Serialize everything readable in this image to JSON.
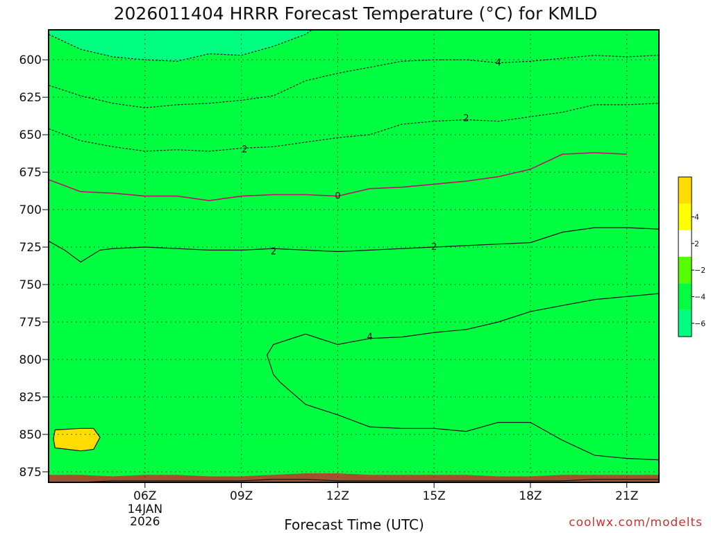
{
  "chart_data": {
    "type": "heatmap",
    "title": "2026011404 HRRR Forecast Temperature (°C) for KMLD",
    "xlabel": "Forecast Time (UTC)",
    "credit": "coolwx.com/modelts",
    "x_range": [
      3,
      22
    ],
    "y_range": [
      580,
      882
    ],
    "y_ticks": [
      {
        "value": 600,
        "label": "600"
      },
      {
        "value": 625,
        "label": "625"
      },
      {
        "value": 650,
        "label": "650"
      },
      {
        "value": 675,
        "label": "675"
      },
      {
        "value": 700,
        "label": "700"
      },
      {
        "value": 725,
        "label": "725"
      },
      {
        "value": 750,
        "label": "750"
      },
      {
        "value": 775,
        "label": "775"
      },
      {
        "value": 800,
        "label": "800"
      },
      {
        "value": 825,
        "label": "825"
      },
      {
        "value": 850,
        "label": "850"
      },
      {
        "value": 875,
        "label": "875"
      }
    ],
    "x_ticks": [
      {
        "value": 6,
        "label": "06Z",
        "sub": [
          "14JAN",
          "2026"
        ]
      },
      {
        "value": 9,
        "label": "09Z",
        "sub": []
      },
      {
        "value": 12,
        "label": "12Z",
        "sub": []
      },
      {
        "value": 15,
        "label": "15Z",
        "sub": []
      },
      {
        "value": 18,
        "label": "18Z",
        "sub": []
      },
      {
        "value": 21,
        "label": "21Z",
        "sub": []
      }
    ],
    "colorbar": [
      {
        "color": "#00ff80",
        "label": "−6"
      },
      {
        "color": "#00ff40",
        "label": "−4"
      },
      {
        "color": "#55ff00",
        "label": "−2"
      },
      {
        "color": "#ffffff",
        "label": "2"
      },
      {
        "color": "#ffff00",
        "label": "4"
      },
      {
        "color": "#ffdd00",
        "label": ""
      }
    ],
    "fills": [
      {
        "name": "above-4",
        "color": "#ffdd00",
        "base": "bottom",
        "edge": "c4"
      },
      {
        "name": "2-to-4",
        "color": "#ffff00",
        "base": "bottom",
        "edge": "c2"
      },
      {
        "name": "minus2-to-2",
        "color": "#ffffff",
        "base": "bottom",
        "edge": "cm2"
      },
      {
        "name": "minus4-to-minus2",
        "color": "#55ff00",
        "base": "bottom",
        "edge": "cm4"
      },
      {
        "name": "minus6-to-minus4",
        "color": "#00ff40",
        "base": "bottom",
        "edge": "cm6"
      },
      {
        "name": "below-minus6",
        "color": "#00ff80",
        "base": "top",
        "edge": "cm6"
      }
    ],
    "contours": {
      "cm6": {
        "style": "dashed",
        "color": "#222222",
        "label": "",
        "points": [
          [
            3,
            583
          ],
          [
            4,
            593
          ],
          [
            5,
            598
          ],
          [
            6,
            600
          ],
          [
            7,
            601
          ],
          [
            8,
            596
          ],
          [
            9,
            597
          ],
          [
            10,
            591
          ],
          [
            11,
            583
          ],
          [
            11.2,
            580
          ]
        ]
      },
      "cm4": {
        "style": "dashed",
        "color": "#222222",
        "label": "4",
        "points": [
          [
            3,
            617
          ],
          [
            4,
            624
          ],
          [
            5,
            629
          ],
          [
            6,
            632
          ],
          [
            7,
            630
          ],
          [
            8,
            629
          ],
          [
            9,
            627
          ],
          [
            10,
            624
          ],
          [
            11,
            614
          ],
          [
            12,
            609
          ],
          [
            13,
            605
          ],
          [
            14,
            601
          ],
          [
            15,
            600
          ],
          [
            16,
            600
          ],
          [
            17,
            602
          ],
          [
            18,
            601
          ],
          [
            19,
            599
          ],
          [
            20,
            597
          ],
          [
            21,
            598
          ],
          [
            22,
            597
          ]
        ]
      },
      "cm2": {
        "style": "dashed",
        "color": "#222222",
        "label": "2",
        "points": [
          [
            3,
            646
          ],
          [
            4,
            654
          ],
          [
            5,
            658
          ],
          [
            6,
            661
          ],
          [
            7,
            660
          ],
          [
            8,
            661
          ],
          [
            9,
            659
          ],
          [
            10,
            658
          ],
          [
            11,
            655
          ],
          [
            12,
            652
          ],
          [
            13,
            650
          ],
          [
            14,
            643
          ],
          [
            15,
            641
          ],
          [
            16,
            640
          ],
          [
            17,
            641
          ],
          [
            18,
            638
          ],
          [
            19,
            635
          ],
          [
            20,
            630
          ],
          [
            21,
            630
          ],
          [
            22,
            629
          ]
        ]
      },
      "c0": {
        "style": "solid",
        "color": "#c0106a",
        "label": "0",
        "points": [
          [
            3,
            680
          ],
          [
            4,
            688
          ],
          [
            5,
            689
          ],
          [
            6,
            691
          ],
          [
            7,
            691
          ],
          [
            8,
            694
          ],
          [
            9,
            691
          ],
          [
            10,
            690
          ],
          [
            11,
            690
          ],
          [
            12,
            691
          ],
          [
            13,
            686
          ],
          [
            14,
            685
          ],
          [
            15,
            683
          ],
          [
            16,
            681
          ],
          [
            17,
            678
          ],
          [
            18,
            673
          ],
          [
            19,
            663
          ],
          [
            20,
            662
          ],
          [
            21,
            663
          ]
        ]
      },
      "c2": {
        "style": "solid",
        "color": "#111111",
        "label": "2",
        "points": [
          [
            3,
            721
          ],
          [
            3.5,
            727
          ],
          [
            4,
            735
          ],
          [
            4.6,
            727
          ],
          [
            5,
            726
          ],
          [
            6,
            725
          ],
          [
            7,
            726
          ],
          [
            8,
            727
          ],
          [
            9,
            727
          ],
          [
            10,
            726
          ],
          [
            11,
            727
          ],
          [
            12,
            728
          ],
          [
            13,
            727
          ],
          [
            14,
            726
          ],
          [
            15,
            725
          ],
          [
            16,
            724
          ],
          [
            17,
            723
          ],
          [
            18,
            722
          ],
          [
            19,
            715
          ],
          [
            20,
            712
          ],
          [
            21,
            712
          ],
          [
            22,
            713
          ]
        ]
      },
      "c4": {
        "style": "solid",
        "color": "#111111",
        "label": "4",
        "points": [
          [
            3,
            882
          ],
          [
            4,
            882
          ],
          [
            5,
            881
          ],
          [
            6,
            881
          ],
          [
            7,
            881
          ],
          [
            8,
            881
          ],
          [
            9,
            881
          ],
          [
            10,
            880
          ],
          [
            11,
            880
          ],
          [
            12,
            881
          ],
          [
            13,
            881
          ],
          [
            14,
            881
          ],
          [
            15,
            881
          ],
          [
            16,
            881
          ],
          [
            17,
            881
          ],
          [
            18,
            881
          ],
          [
            19,
            881
          ],
          [
            20,
            880
          ],
          [
            21,
            880
          ],
          [
            22,
            880
          ],
          [
            22,
            756
          ],
          [
            21,
            758
          ],
          [
            20,
            760
          ],
          [
            19,
            764
          ],
          [
            18,
            768
          ],
          [
            17,
            775
          ],
          [
            16,
            780
          ],
          [
            15,
            782
          ],
          [
            14,
            785
          ],
          [
            13,
            786
          ],
          [
            12,
            790
          ],
          [
            11,
            783
          ],
          [
            10,
            790
          ],
          [
            9.8,
            797
          ],
          [
            10,
            810
          ],
          [
            10.2,
            815
          ],
          [
            11,
            830
          ],
          [
            12,
            837
          ],
          [
            13,
            845
          ],
          [
            14,
            846
          ],
          [
            15,
            846
          ],
          [
            16,
            848
          ],
          [
            17,
            842
          ],
          [
            18,
            842
          ],
          [
            19,
            854
          ],
          [
            20,
            864
          ],
          [
            21,
            866
          ],
          [
            22,
            867
          ]
        ]
      },
      "c4b": {
        "style": "solid",
        "color": "#111111",
        "label": "",
        "points": [
          [
            3.2,
            847
          ],
          [
            4,
            846
          ],
          [
            4.4,
            846
          ],
          [
            4.6,
            852
          ],
          [
            4.4,
            860
          ],
          [
            4,
            861
          ],
          [
            3.6,
            860
          ],
          [
            3.2,
            859
          ],
          [
            3.15,
            853
          ],
          [
            3.2,
            847
          ]
        ]
      }
    },
    "contour_labels": [
      {
        "text": "4",
        "x": 17,
        "y": 602
      },
      {
        "text": "2",
        "x": 16,
        "y": 639
      },
      {
        "text": "2",
        "x": 9.1,
        "y": 660
      },
      {
        "text": "0",
        "x": 12,
        "y": 691
      },
      {
        "text": "2",
        "x": 10,
        "y": 728
      },
      {
        "text": "2",
        "x": 15,
        "y": 725
      },
      {
        "text": "4",
        "x": 13,
        "y": 785
      }
    ],
    "ground": {
      "color": "#a0522d",
      "top_points": [
        [
          3,
          877
        ],
        [
          4,
          877
        ],
        [
          5,
          878
        ],
        [
          6,
          877
        ],
        [
          7,
          877
        ],
        [
          8,
          878
        ],
        [
          9,
          878
        ],
        [
          10,
          877
        ],
        [
          11,
          876
        ],
        [
          12,
          876
        ],
        [
          13,
          877
        ],
        [
          14,
          877
        ],
        [
          15,
          877
        ],
        [
          16,
          877
        ],
        [
          17,
          878
        ],
        [
          18,
          878
        ],
        [
          19,
          877
        ],
        [
          20,
          877
        ],
        [
          21,
          877
        ],
        [
          22,
          877
        ]
      ]
    }
  }
}
